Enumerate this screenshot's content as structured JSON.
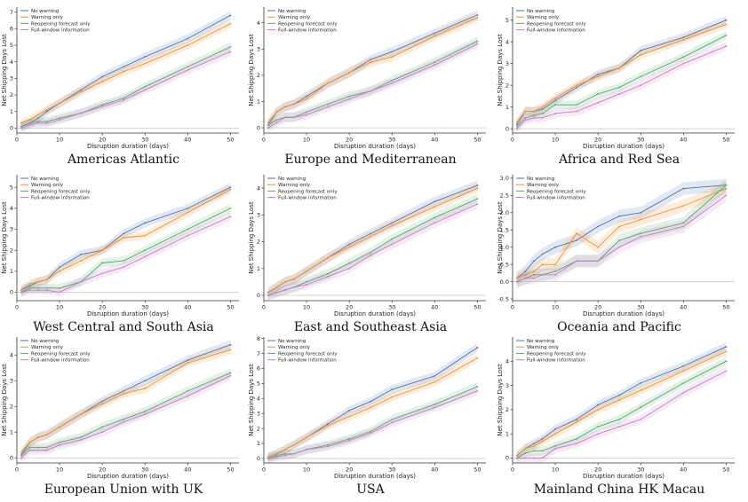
{
  "chart_data": [
    {
      "type": "line",
      "title": "Americas Atlantic",
      "xlabel": "Disruption duration (days)",
      "ylabel": "Net Shipping Days Lost",
      "xlim": [
        0,
        52
      ],
      "ylim": [
        -0.3,
        7.3
      ],
      "xticks": [
        0,
        10,
        20,
        30,
        40,
        50
      ],
      "yticks": [
        0,
        1,
        2,
        3,
        4,
        5,
        6,
        7
      ],
      "legend": "top-left",
      "x": [
        1,
        3,
        5,
        7,
        10,
        15,
        20,
        25,
        30,
        40,
        50
      ],
      "series": [
        {
          "name": "No warning",
          "color": "#4c72b0",
          "values": [
            0.1,
            0.3,
            0.6,
            1.0,
            1.5,
            2.3,
            3.1,
            3.7,
            4.3,
            5.4,
            6.8
          ]
        },
        {
          "name": "Warning only",
          "color": "#f28e2b",
          "values": [
            0.3,
            0.5,
            0.8,
            1.1,
            1.5,
            2.2,
            2.8,
            3.4,
            3.9,
            5.0,
            6.3
          ]
        },
        {
          "name": "Reopening forecast only",
          "color": "#55a868",
          "values": [
            0.1,
            0.3,
            0.4,
            0.4,
            0.6,
            0.9,
            1.4,
            1.8,
            2.5,
            3.7,
            4.9
          ]
        },
        {
          "name": "Full-window information",
          "color": "#c77cc7",
          "values": [
            0.0,
            0.2,
            0.3,
            0.3,
            0.5,
            0.9,
            1.3,
            1.7,
            2.3,
            3.5,
            4.6
          ]
        }
      ]
    },
    {
      "type": "line",
      "title": "Europe and Mediterranean",
      "xlabel": "Disruption duration (days)",
      "ylabel": "Net Shipping Days Lost",
      "xlim": [
        0,
        52
      ],
      "ylim": [
        -0.2,
        4.6
      ],
      "xticks": [
        0,
        10,
        20,
        30,
        40,
        50
      ],
      "yticks": [
        0,
        1,
        2,
        3,
        4
      ],
      "legend": "top-left",
      "x": [
        1,
        3,
        5,
        7,
        10,
        15,
        20,
        25,
        30,
        40,
        50
      ],
      "series": [
        {
          "name": "No warning",
          "color": "#4c72b0",
          "values": [
            0.1,
            0.6,
            0.8,
            0.9,
            1.2,
            1.7,
            2.1,
            2.6,
            2.9,
            3.6,
            4.3
          ]
        },
        {
          "name": "Warning only",
          "color": "#f28e2b",
          "values": [
            0.2,
            0.6,
            0.8,
            0.9,
            1.1,
            1.7,
            2.1,
            2.5,
            2.7,
            3.5,
            4.2
          ]
        },
        {
          "name": "Reopening forecast only",
          "color": "#55a868",
          "values": [
            0.1,
            0.3,
            0.4,
            0.4,
            0.6,
            0.9,
            1.2,
            1.4,
            1.8,
            2.5,
            3.3
          ]
        },
        {
          "name": "Full-window information",
          "color": "#c77cc7",
          "values": [
            0.0,
            0.2,
            0.4,
            0.4,
            0.5,
            0.8,
            1.1,
            1.4,
            1.7,
            2.4,
            3.2
          ]
        }
      ]
    },
    {
      "type": "line",
      "title": "Africa and Red Sea",
      "xlabel": "Disruption duration (days)",
      "ylabel": "Net Shipping Days Lost",
      "xlim": [
        0,
        52
      ],
      "ylim": [
        -0.2,
        5.6
      ],
      "xticks": [
        0,
        10,
        20,
        30,
        40,
        50
      ],
      "yticks": [
        0,
        1,
        2,
        3,
        4,
        5
      ],
      "legend": "top-left",
      "x": [
        1,
        3,
        5,
        7,
        10,
        15,
        20,
        25,
        30,
        40,
        50
      ],
      "series": [
        {
          "name": "No warning",
          "color": "#4c72b0",
          "values": [
            0.2,
            0.8,
            0.8,
            0.9,
            1.3,
            1.9,
            2.5,
            2.8,
            3.6,
            4.2,
            5.0
          ]
        },
        {
          "name": "Warning only",
          "color": "#f28e2b",
          "values": [
            0.3,
            0.8,
            0.8,
            1.0,
            1.4,
            2.0,
            2.4,
            2.8,
            3.4,
            4.1,
            4.8
          ]
        },
        {
          "name": "Reopening forecast only",
          "color": "#55a868",
          "values": [
            0.1,
            0.5,
            0.6,
            0.7,
            1.1,
            1.1,
            1.6,
            1.9,
            2.4,
            3.3,
            4.3
          ]
        },
        {
          "name": "Full-window information",
          "color": "#c77cc7",
          "values": [
            0.0,
            0.4,
            0.5,
            0.5,
            0.7,
            0.8,
            1.2,
            1.6,
            2.0,
            3.0,
            3.8
          ]
        }
      ]
    },
    {
      "type": "line",
      "title": "West Central and South Asia",
      "xlabel": "Disruption duration (days)",
      "ylabel": "Net Shipping Days Lost",
      "xlim": [
        0,
        52
      ],
      "ylim": [
        -0.4,
        5.6
      ],
      "xticks": [
        0,
        10,
        20,
        30,
        40,
        50
      ],
      "yticks": [
        0,
        1,
        2,
        3,
        4,
        5
      ],
      "legend": "top-left",
      "x": [
        1,
        3,
        5,
        7,
        10,
        15,
        20,
        25,
        30,
        40,
        50
      ],
      "series": [
        {
          "name": "No warning",
          "color": "#4c72b0",
          "values": [
            0.1,
            0.3,
            0.5,
            0.6,
            1.2,
            1.8,
            2.0,
            2.8,
            3.3,
            4.0,
            5.0
          ]
        },
        {
          "name": "Warning only",
          "color": "#f28e2b",
          "values": [
            0.1,
            0.4,
            0.5,
            0.6,
            1.0,
            1.5,
            2.0,
            2.6,
            2.7,
            3.8,
            4.9
          ]
        },
        {
          "name": "Reopening forecast only",
          "color": "#55a868",
          "values": [
            0.0,
            0.2,
            0.2,
            0.2,
            0.2,
            0.5,
            1.4,
            1.5,
            2.0,
            3.0,
            4.0
          ]
        },
        {
          "name": "Full-window information",
          "color": "#c77cc7",
          "values": [
            0.0,
            0.1,
            0.1,
            0.1,
            0.0,
            0.5,
            0.9,
            1.2,
            1.7,
            2.7,
            3.6
          ]
        }
      ]
    },
    {
      "type": "line",
      "title": "East and Southeast Asia",
      "xlabel": "Disruption duration (days)",
      "ylabel": "Net Shipping Days Lost",
      "xlim": [
        0,
        52
      ],
      "ylim": [
        -0.2,
        4.5
      ],
      "xticks": [
        0,
        10,
        20,
        30,
        40,
        50
      ],
      "yticks": [
        0,
        1,
        2,
        3,
        4
      ],
      "legend": "top-left",
      "x": [
        1,
        3,
        5,
        7,
        10,
        15,
        20,
        25,
        30,
        40,
        50
      ],
      "series": [
        {
          "name": "No warning",
          "color": "#4c72b0",
          "values": [
            0.1,
            0.3,
            0.5,
            0.6,
            0.9,
            1.4,
            1.9,
            2.3,
            2.7,
            3.5,
            4.1
          ]
        },
        {
          "name": "Warning only",
          "color": "#f28e2b",
          "values": [
            0.1,
            0.3,
            0.5,
            0.6,
            0.9,
            1.4,
            1.8,
            2.2,
            2.6,
            3.3,
            4.0
          ]
        },
        {
          "name": "Reopening forecast only",
          "color": "#55a868",
          "values": [
            0.0,
            0.1,
            0.2,
            0.3,
            0.5,
            0.8,
            1.2,
            1.6,
            2.1,
            2.9,
            3.6
          ]
        },
        {
          "name": "Full-window information",
          "color": "#c77cc7",
          "values": [
            0.0,
            0.1,
            0.2,
            0.3,
            0.4,
            0.7,
            1.0,
            1.5,
            1.9,
            2.7,
            3.4
          ]
        }
      ]
    },
    {
      "type": "line",
      "title": "Oceania and Pacific",
      "xlabel": "Disruption duration (days)",
      "ylabel": "Net Shipping Days Lost",
      "xlim": [
        0,
        52
      ],
      "ylim": [
        -0.55,
        3.1
      ],
      "xticks": [
        0,
        10,
        20,
        30,
        40,
        50
      ],
      "yticks": [
        -0.5,
        0.0,
        0.5,
        1.0,
        1.5,
        2.0,
        2.5,
        3.0
      ],
      "legend": "top-left",
      "x": [
        1,
        3,
        5,
        7,
        10,
        15,
        20,
        25,
        30,
        40,
        50
      ],
      "series": [
        {
          "name": "No warning",
          "color": "#4c72b0",
          "values": [
            0.1,
            0.3,
            0.6,
            0.8,
            1.0,
            1.2,
            1.6,
            1.9,
            2.0,
            2.7,
            2.8
          ]
        },
        {
          "name": "Warning only",
          "color": "#f28e2b",
          "values": [
            0.1,
            0.2,
            0.3,
            0.5,
            0.5,
            1.4,
            1.0,
            1.6,
            1.8,
            2.2,
            2.7
          ]
        },
        {
          "name": "Reopening forecast only",
          "color": "#55a868",
          "values": [
            0.0,
            0.1,
            0.2,
            0.2,
            0.3,
            0.6,
            0.6,
            1.2,
            1.4,
            1.7,
            2.8
          ]
        },
        {
          "name": "Full-window information",
          "color": "#c77cc7",
          "values": [
            0.0,
            0.1,
            0.1,
            0.2,
            0.2,
            0.6,
            0.6,
            1.0,
            1.3,
            1.6,
            2.5
          ]
        }
      ]
    },
    {
      "type": "line",
      "title": "European Union with UK",
      "xlabel": "Disruption duration (days)",
      "ylabel": "Net Shipping Days Lost",
      "xlim": [
        0,
        52
      ],
      "ylim": [
        -0.2,
        4.7
      ],
      "xticks": [
        0,
        10,
        20,
        30,
        40,
        50
      ],
      "yticks": [
        0,
        1,
        2,
        3,
        4
      ],
      "legend": "top-left",
      "x": [
        1,
        3,
        5,
        7,
        10,
        15,
        20,
        25,
        30,
        40,
        50
      ],
      "series": [
        {
          "name": "No warning",
          "color": "#4c72b0",
          "values": [
            0.1,
            0.6,
            0.8,
            0.9,
            1.2,
            1.7,
            2.2,
            2.6,
            3.0,
            3.8,
            4.4
          ]
        },
        {
          "name": "Warning only",
          "color": "#f28e2b",
          "values": [
            0.2,
            0.6,
            0.8,
            0.9,
            1.2,
            1.7,
            2.1,
            2.5,
            2.7,
            3.7,
            4.2
          ]
        },
        {
          "name": "Reopening forecast only",
          "color": "#55a868",
          "values": [
            0.1,
            0.4,
            0.4,
            0.4,
            0.6,
            0.8,
            1.2,
            1.5,
            1.8,
            2.6,
            3.3
          ]
        },
        {
          "name": "Full-window information",
          "color": "#c77cc7",
          "values": [
            0.0,
            0.3,
            0.3,
            0.3,
            0.5,
            0.7,
            1.0,
            1.4,
            1.7,
            2.4,
            3.2
          ]
        }
      ]
    },
    {
      "type": "line",
      "title": "USA",
      "xlabel": "Disruption duration (days)",
      "ylabel": "Net Shipping Days Lost",
      "xlim": [
        0,
        52
      ],
      "ylim": [
        -0.3,
        8.1
      ],
      "xticks": [
        0,
        10,
        20,
        30,
        40,
        50
      ],
      "yticks": [
        0,
        1,
        2,
        3,
        4,
        5,
        6,
        7,
        8
      ],
      "legend": "top-left",
      "x": [
        1,
        3,
        5,
        7,
        10,
        15,
        20,
        25,
        30,
        40,
        50
      ],
      "series": [
        {
          "name": "No warning",
          "color": "#4c72b0",
          "values": [
            0.1,
            0.3,
            0.6,
            0.9,
            1.4,
            2.3,
            3.2,
            3.8,
            4.6,
            5.5,
            7.4
          ]
        },
        {
          "name": "Warning only",
          "color": "#f28e2b",
          "values": [
            0.1,
            0.3,
            0.6,
            0.9,
            1.4,
            2.2,
            2.8,
            3.4,
            4.1,
            5.1,
            6.7
          ]
        },
        {
          "name": "Reopening forecast only",
          "color": "#55a868",
          "values": [
            0.0,
            0.2,
            0.3,
            0.3,
            0.6,
            0.9,
            1.3,
            1.8,
            2.6,
            3.6,
            4.8
          ]
        },
        {
          "name": "Full-window information",
          "color": "#c77cc7",
          "values": [
            0.0,
            0.1,
            0.2,
            0.3,
            0.6,
            0.8,
            1.2,
            1.7,
            2.4,
            3.4,
            4.5
          ]
        }
      ]
    },
    {
      "type": "line",
      "title": "Mainland China HK Macau",
      "xlabel": "Disruption duration (days)",
      "ylabel": "Net Shipping Days Lost",
      "xlim": [
        0,
        52
      ],
      "ylim": [
        -0.2,
        5.0
      ],
      "xticks": [
        0,
        10,
        20,
        30,
        40,
        50
      ],
      "yticks": [
        0,
        1,
        2,
        3,
        4
      ],
      "legend": "top-left",
      "x": [
        1,
        3,
        5,
        7,
        10,
        15,
        20,
        25,
        30,
        40,
        50
      ],
      "series": [
        {
          "name": "No warning",
          "color": "#4c72b0",
          "values": [
            0.1,
            0.4,
            0.6,
            0.8,
            1.2,
            1.6,
            2.2,
            2.6,
            3.1,
            3.8,
            4.6
          ]
        },
        {
          "name": "Warning only",
          "color": "#f28e2b",
          "values": [
            0.1,
            0.4,
            0.5,
            0.7,
            1.0,
            1.5,
            2.0,
            2.4,
            2.8,
            3.6,
            4.4
          ]
        },
        {
          "name": "Reopening forecast only",
          "color": "#55a868",
          "values": [
            0.0,
            0.2,
            0.3,
            0.3,
            0.5,
            0.8,
            1.3,
            1.6,
            2.1,
            3.1,
            4.0
          ]
        },
        {
          "name": "Full-window information",
          "color": "#c77cc7",
          "values": [
            0.0,
            0.0,
            0.0,
            0.0,
            0.4,
            0.6,
            1.0,
            1.3,
            1.6,
            2.7,
            3.6
          ]
        }
      ]
    }
  ]
}
